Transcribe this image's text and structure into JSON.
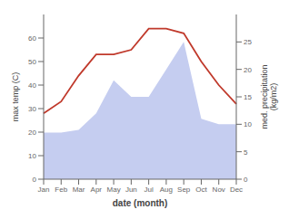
{
  "chart_data": {
    "type": "line",
    "categories": [
      "Jan",
      "Feb",
      "Mar",
      "Apr",
      "May",
      "Jun",
      "Jul",
      "Aug",
      "Sep",
      "Oct",
      "Nov",
      "Dec"
    ],
    "series": [
      {
        "type": "area",
        "axis": "y2",
        "color": "#c5cdf0",
        "values": [
          8.5,
          8.5,
          9.0,
          12,
          18,
          15,
          15,
          20,
          25,
          11,
          10,
          10
        ]
      },
      {
        "type": "line",
        "color": "#c0392b",
        "values": [
          28,
          33,
          44,
          53,
          53,
          55,
          64,
          64,
          62,
          50,
          40,
          32
        ]
      }
    ],
    "xlabel": "date (month)",
    "ylabel": "max temp (C)",
    "y2label": "med. precipitation\n(kg/m2)",
    "ylim": [
      0,
      70
    ],
    "yticks": [
      0,
      10,
      20,
      30,
      40,
      50,
      60
    ],
    "y2lim": [
      0,
      30
    ],
    "y2ticks": [
      0,
      5,
      10,
      15,
      20,
      25
    ],
    "grid": false
  }
}
